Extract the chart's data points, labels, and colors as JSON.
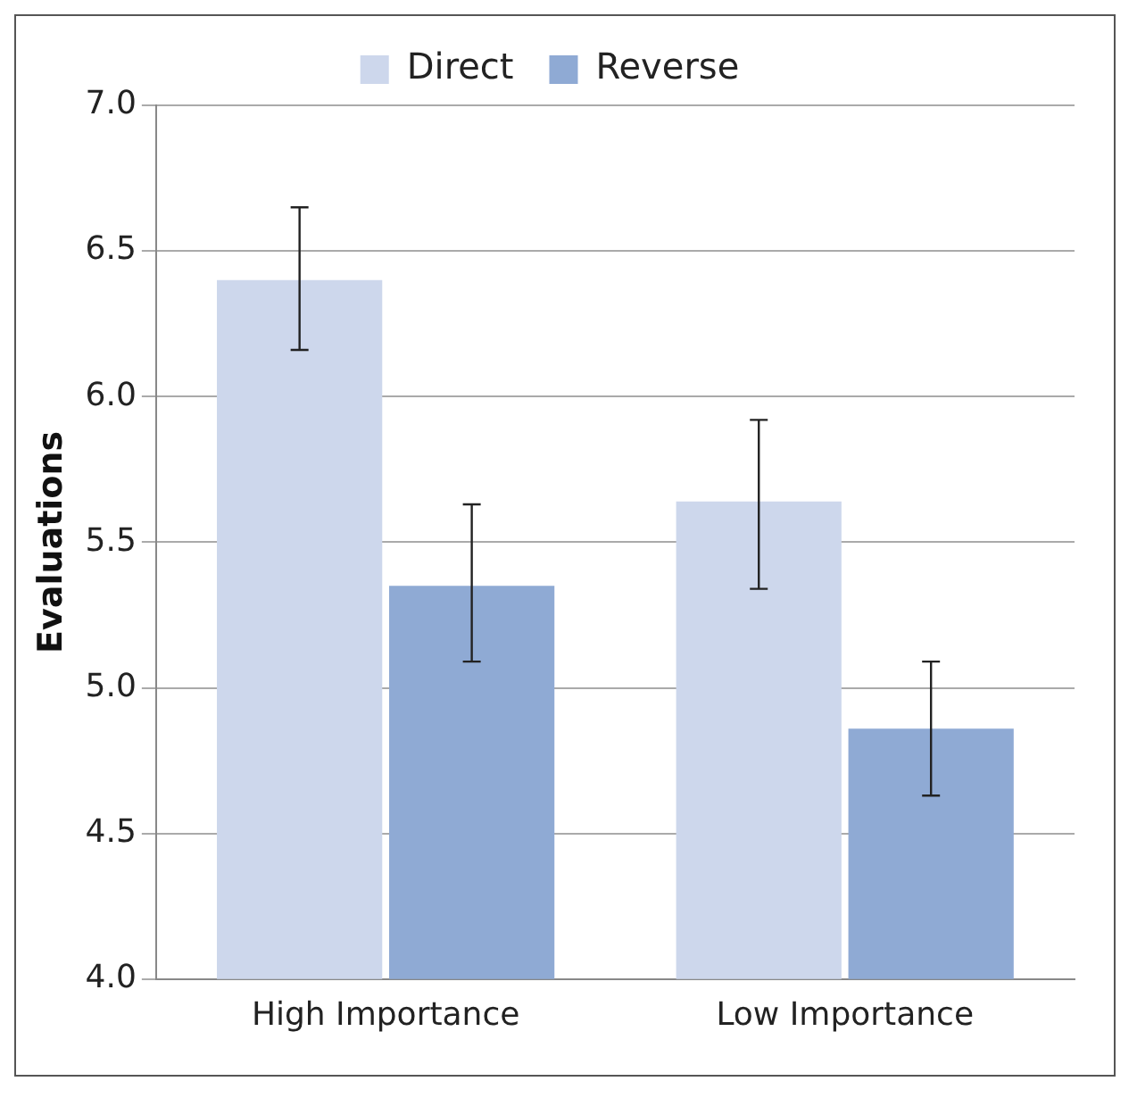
{
  "chart_data": {
    "type": "bar",
    "ylabel": "Evaluations",
    "categories": [
      "High Importance",
      "Low Importance"
    ],
    "series": [
      {
        "name": "Direct",
        "color": "#cdd7ec",
        "values": [
          6.4,
          5.64
        ],
        "errors": [
          [
            6.16,
            6.65
          ],
          [
            5.34,
            5.92
          ]
        ]
      },
      {
        "name": "Reverse",
        "color": "#8faad4",
        "values": [
          5.35,
          4.86
        ],
        "errors": [
          [
            5.09,
            5.63
          ],
          [
            4.63,
            5.09
          ]
        ]
      }
    ],
    "ylim": [
      4.0,
      7.0
    ],
    "yticks": [
      {
        "value": 4,
        "label": "4.0"
      },
      {
        "value": 4.5,
        "label": "4.5"
      },
      {
        "value": 5,
        "label": "5.0"
      },
      {
        "value": 5.5,
        "label": "5.5"
      },
      {
        "value": 6,
        "label": "6.0"
      },
      {
        "value": 6.5,
        "label": "6.5"
      },
      {
        "value": 7,
        "label": "7.0"
      }
    ],
    "grid": "y",
    "legend": "top"
  }
}
